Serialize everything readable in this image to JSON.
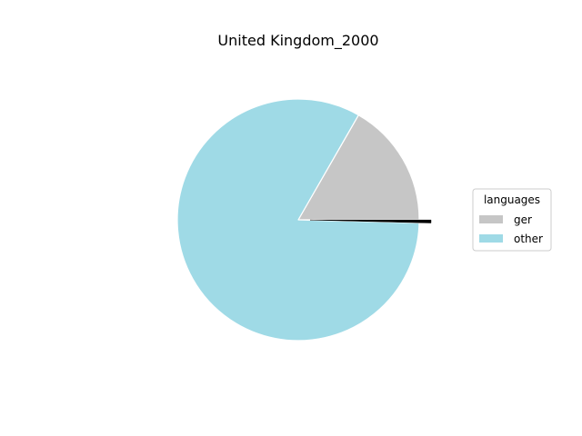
{
  "chart_data": {
    "type": "pie",
    "title": "United Kingdom_2000",
    "legend": {
      "title": "languages",
      "placement": "center-right"
    },
    "slices": [
      {
        "label": "ger",
        "value": 16.7,
        "color": "#c6c6c6"
      },
      {
        "label": "other",
        "value": 82.9,
        "color": "#9fdae6"
      },
      {
        "label": "",
        "value": 0.4,
        "color": "#000000",
        "exploded": true
      }
    ],
    "start_angle_deg": 0,
    "direction": "counterclockwise"
  }
}
